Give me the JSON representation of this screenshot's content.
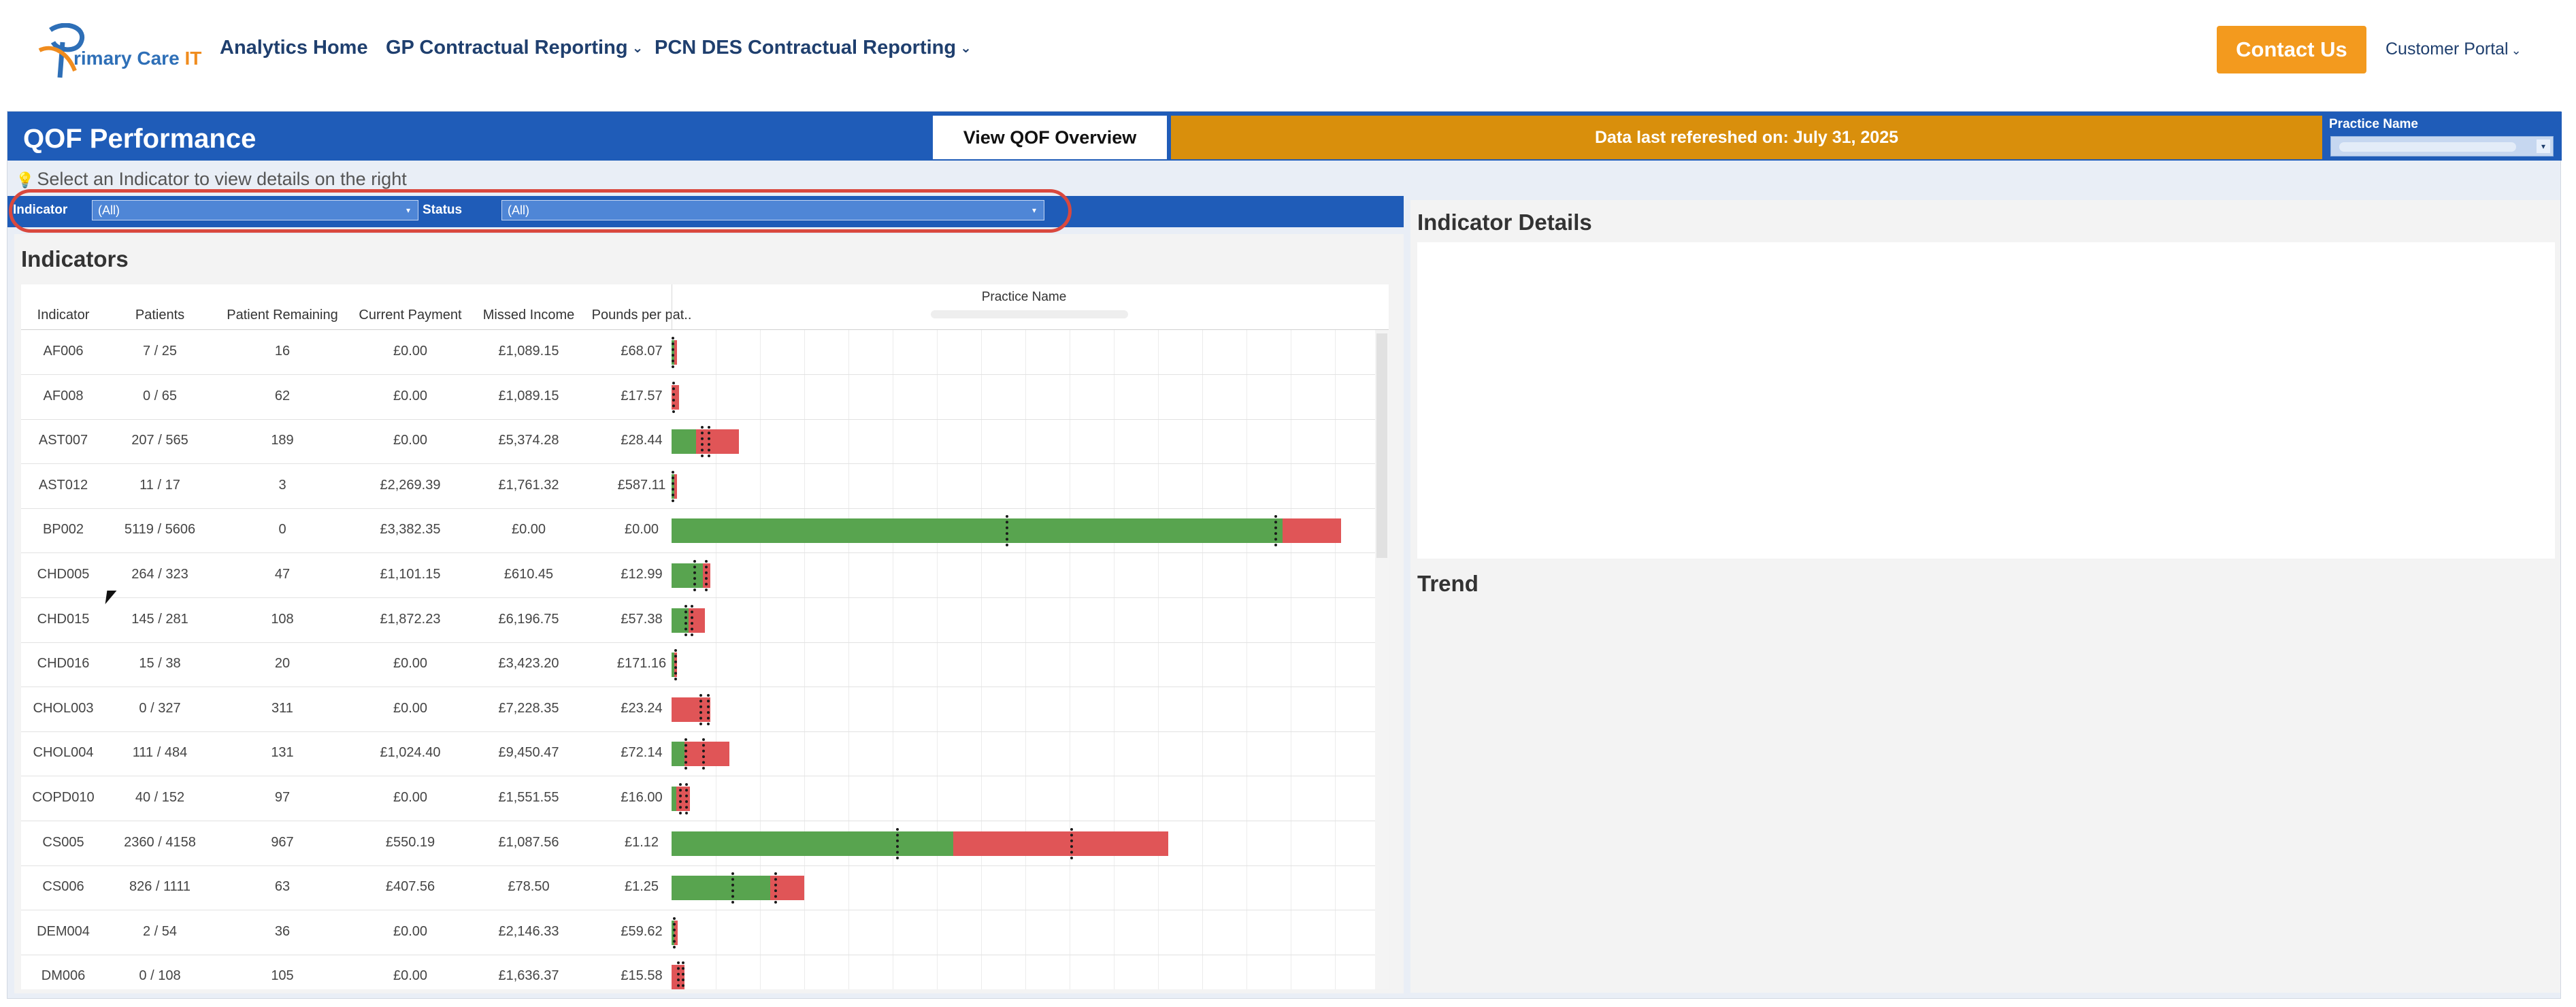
{
  "nav": {
    "logo_text_a": "rimary Care ",
    "logo_text_b": "IT",
    "links": [
      "Analytics Home",
      "GP Contractual Reporting",
      "PCN DES Contractual Reporting"
    ],
    "contact": "Contact Us",
    "portal": "Customer Portal"
  },
  "dashboard": {
    "title": "QOF Performance",
    "overview_button": "View QOF Overview",
    "refresh_text": "Data last refereshed on: July 31, 2025",
    "practice_filter_label": "Practice Name",
    "hint": "Select an Indicator to view details on the right",
    "filters": {
      "indicator_label": "Indicator",
      "indicator_value": "(All)",
      "status_label": "Status",
      "status_value": "(All)"
    }
  },
  "indicators": {
    "title": "Indicators",
    "columns": [
      "Indicator",
      "Patients",
      "Patient Remaining",
      "Current Payment",
      "Missed Income",
      "Pounds per pat.."
    ],
    "chart_header": "Practice Name",
    "rows": [
      {
        "indicator": "AF006",
        "patients": "7 / 25",
        "remaining": "16",
        "payment": "£0.00",
        "missed": "£1,089.15",
        "ppp": "£68.07",
        "achieved": 7,
        "total": 25,
        "marks": [
          0
        ]
      },
      {
        "indicator": "AF008",
        "patients": "0 / 65",
        "remaining": "62",
        "payment": "£0.00",
        "missed": "£1,089.15",
        "ppp": "£17.57",
        "achieved": 0,
        "total": 65,
        "marks": [
          5
        ]
      },
      {
        "indicator": "AST007",
        "patients": "207 / 565",
        "remaining": "189",
        "payment": "£0.00",
        "missed": "£5,374.28",
        "ppp": "£28.44",
        "achieved": 207,
        "total": 565,
        "marks": [
          246,
          303
        ]
      },
      {
        "indicator": "AST012",
        "patients": "11 / 17",
        "remaining": "3",
        "payment": "£2,269.39",
        "missed": "£1,761.32",
        "ppp": "£587.11",
        "achieved": 11,
        "total": 17,
        "marks": [
          0
        ]
      },
      {
        "indicator": "BP002",
        "patients": "5119 / 5606",
        "remaining": "0",
        "payment": "£3,382.35",
        "missed": "£0.00",
        "ppp": "£0.00",
        "achieved": 5119,
        "total": 5606,
        "marks": [
          2800,
          5050
        ]
      },
      {
        "indicator": "CHD005",
        "patients": "264 / 323",
        "remaining": "47",
        "payment": "£1,101.15",
        "missed": "£610.45",
        "ppp": "£12.99",
        "achieved": 264,
        "total": 323,
        "marks": [
          180,
          280
        ]
      },
      {
        "indicator": "CHD015",
        "patients": "145 / 281",
        "remaining": "108",
        "payment": "£1,872.23",
        "missed": "£6,196.75",
        "ppp": "£57.38",
        "achieved": 145,
        "total": 281,
        "marks": [
          110,
          160
        ]
      },
      {
        "indicator": "CHD016",
        "patients": "15 / 38",
        "remaining": "20",
        "payment": "£0.00",
        "missed": "£3,423.20",
        "ppp": "£171.16",
        "achieved": 15,
        "total": 38,
        "marks": [
          20
        ]
      },
      {
        "indicator": "CHOL003",
        "patients": "0 / 327",
        "remaining": "311",
        "payment": "£0.00",
        "missed": "£7,228.35",
        "ppp": "£23.24",
        "achieved": 0,
        "total": 327,
        "marks": [
          232,
          295
        ]
      },
      {
        "indicator": "CHOL004",
        "patients": "111 / 484",
        "remaining": "131",
        "payment": "£1,024.40",
        "missed": "£9,450.47",
        "ppp": "£72.14",
        "achieved": 111,
        "total": 484,
        "marks": [
          110,
          254
        ]
      },
      {
        "indicator": "COPD010",
        "patients": "40 / 152",
        "remaining": "97",
        "payment": "£0.00",
        "missed": "£1,551.55",
        "ppp": "£16.00",
        "achieved": 40,
        "total": 152,
        "marks": [
          60,
          112
        ]
      },
      {
        "indicator": "CS005",
        "patients": "2360 / 4158",
        "remaining": "967",
        "payment": "£550.19",
        "missed": "£1,087.56",
        "ppp": "£1.12",
        "achieved": 2360,
        "total": 4158,
        "marks": [
          1880,
          3340
        ]
      },
      {
        "indicator": "CS006",
        "patients": "826 / 1111",
        "remaining": "63",
        "payment": "£407.56",
        "missed": "£78.50",
        "ppp": "£1.25",
        "achieved": 826,
        "total": 1111,
        "marks": [
          500,
          860
        ]
      },
      {
        "indicator": "DEM004",
        "patients": "2 / 54",
        "remaining": "36",
        "payment": "£0.00",
        "missed": "£2,146.33",
        "ppp": "£59.62",
        "achieved": 2,
        "total": 54,
        "marks": [
          14
        ]
      },
      {
        "indicator": "DM006",
        "patients": "0 / 108",
        "remaining": "105",
        "payment": "£0.00",
        "missed": "£1,636.37",
        "ppp": "£15.58",
        "achieved": 0,
        "total": 108,
        "marks": [
          45,
          85
        ]
      }
    ]
  },
  "details": {
    "title": "Indicator Details"
  },
  "trend": {
    "title": "Trend"
  },
  "colors": {
    "brand_blue": "#1f5cb8",
    "accent_orange": "#f39a1e",
    "banner_orange": "#d98f0c",
    "achieved_green": "#58a44f",
    "missed_red": "#e05557"
  }
}
